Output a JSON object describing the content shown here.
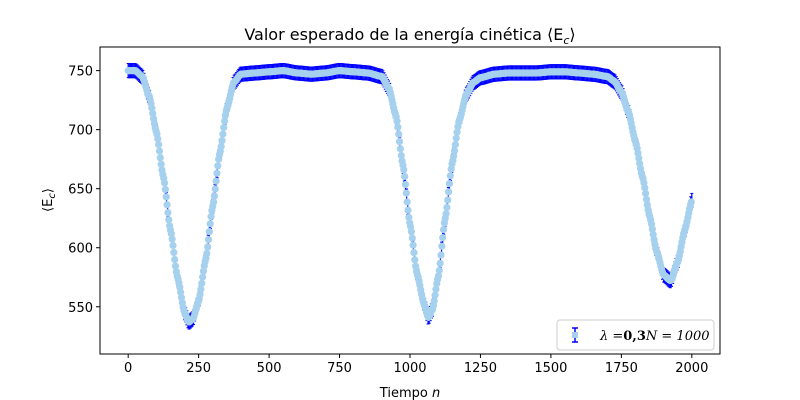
{
  "chart_data": {
    "type": "scatter",
    "title": "Valor esperado de la energía cinética ⟨E",
    "title_sub": "c",
    "title_close": "⟩",
    "xlabel": "Tiempo ",
    "xlabel_var": "n",
    "ylabel": "⟨E",
    "ylabel_sub": "c",
    "ylabel_close": "⟩",
    "xlim": [
      -100,
      2100
    ],
    "ylim": [
      510,
      770
    ],
    "xticks": [
      0,
      250,
      500,
      750,
      1000,
      1250,
      1500,
      1750,
      2000
    ],
    "yticks": [
      550,
      600,
      650,
      700,
      750
    ],
    "grid": false,
    "legend_position": "bottom-right",
    "colors": {
      "error": "#0000ff",
      "marker": "#a6d1ee"
    },
    "series": [
      {
        "name": "λ = 0,3 N = 1000",
        "name_parts": [
          "λ =",
          "0,3",
          "N = 1000"
        ],
        "error_halfwidth": 6,
        "x": [
          0,
          25,
          50,
          75,
          100,
          125,
          150,
          175,
          200,
          215,
          230,
          250,
          275,
          300,
          325,
          350,
          375,
          400,
          450,
          500,
          550,
          600,
          650,
          700,
          750,
          800,
          850,
          900,
          925,
          950,
          975,
          1000,
          1025,
          1050,
          1065,
          1080,
          1100,
          1125,
          1150,
          1175,
          1200,
          1225,
          1250,
          1300,
          1350,
          1400,
          1450,
          1500,
          1550,
          1600,
          1650,
          1700,
          1725,
          1750,
          1775,
          1800,
          1825,
          1850,
          1875,
          1900,
          1925,
          1950,
          1975,
          2000
        ],
        "y": [
          750,
          750,
          745,
          728,
          698,
          660,
          615,
          575,
          545,
          537,
          540,
          555,
          590,
          635,
          680,
          718,
          740,
          747,
          748,
          749,
          750,
          748,
          747,
          748,
          750,
          749,
          748,
          745,
          735,
          712,
          670,
          620,
          578,
          552,
          541,
          548,
          575,
          625,
          672,
          708,
          730,
          740,
          744,
          747,
          748,
          748,
          748,
          749,
          749,
          748,
          747,
          745,
          741,
          732,
          715,
          690,
          660,
          627,
          597,
          577,
          572,
          588,
          615,
          640
        ]
      }
    ]
  }
}
